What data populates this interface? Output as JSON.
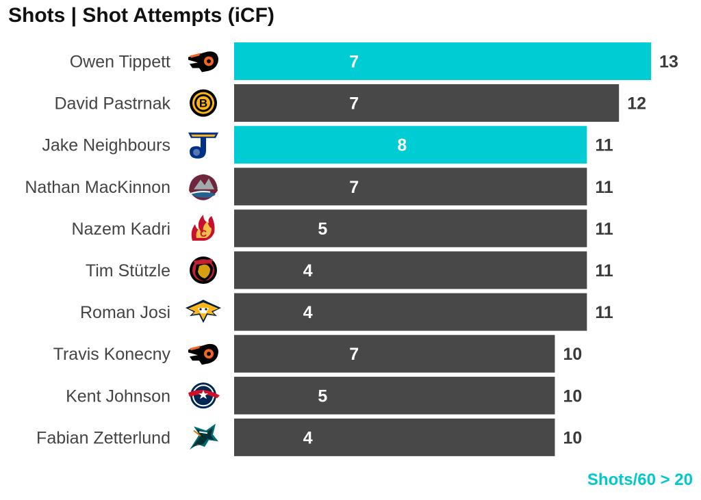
{
  "chart_data": {
    "type": "bar",
    "orientation": "horizontal",
    "title": "Shots | Shot Attempts (iCF)",
    "footnote": "Shots/60 > 20",
    "categories": [
      "Owen Tippett",
      "David Pastrnak",
      "Jake Neighbours",
      "Nathan MacKinnon",
      "Nazem Kadri",
      "Tim Stützle",
      "Roman Josi",
      "Travis Konecny",
      "Kent Johnson",
      "Fabian Zetterlund"
    ],
    "teams": [
      "flyers-logo-icon",
      "bruins-logo-icon",
      "blues-logo-icon",
      "avalanche-logo-icon",
      "flames-logo-icon",
      "senators-logo-icon",
      "predators-logo-icon",
      "flyers-logo-icon",
      "blue-jackets-logo-icon",
      "sharks-logo-icon"
    ],
    "series": [
      {
        "values": [
          13,
          12,
          11,
          11,
          11,
          11,
          11,
          10,
          10,
          10
        ]
      },
      {
        "values": [
          7,
          7,
          8,
          7,
          5,
          4,
          4,
          7,
          5,
          4
        ]
      }
    ],
    "highlighted": [
      true,
      false,
      true,
      false,
      false,
      false,
      false,
      false,
      false,
      false
    ],
    "xlim": [
      0,
      13
    ],
    "grid": false,
    "legend": "none"
  },
  "colors": {
    "bar_default": "#484848",
    "bar_highlight": "#00cdd3",
    "footnote": "#00c8cd"
  }
}
